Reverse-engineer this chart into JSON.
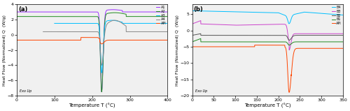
{
  "panel_a": {
    "title": "(a)",
    "xlabel": "Temperature T (°C)",
    "ylabel": "Heat Flow (Normalized) Q  (W/g)",
    "xlim": [
      0,
      400
    ],
    "ylim": [
      -8,
      4
    ],
    "yticks": [
      -8,
      -6,
      -4,
      -2,
      0,
      2,
      4
    ],
    "xticks": [
      0,
      100,
      200,
      300,
      400
    ],
    "exo_label": "Exo Up",
    "series_order": [
      "A1",
      "A2",
      "A3",
      "A4",
      "API"
    ],
    "colors": {
      "A1": "#9B30FF",
      "A2": "#228B22",
      "A3": "#00BFFF",
      "A4": "#888888",
      "API": "#FF4500"
    }
  },
  "panel_b": {
    "title": "(b)",
    "xlabel": "Temperature T (°C)",
    "ylabel": "Heat Flow (Normalized) Q  (W/g)",
    "xlim": [
      0,
      350
    ],
    "ylim": [
      -20,
      8
    ],
    "yticks": [
      -20,
      -15,
      -10,
      -5,
      0,
      5
    ],
    "xticks": [
      0,
      50,
      100,
      150,
      200,
      250,
      300,
      350
    ],
    "exo_label": "Exo Up",
    "series_order": [
      "B4",
      "B3",
      "B2",
      "B1",
      "API"
    ],
    "colors": {
      "B4": "#00BFFF",
      "B3": "#CC44CC",
      "B2": "#555555",
      "B1": "#228B22",
      "API": "#FF4500"
    }
  }
}
